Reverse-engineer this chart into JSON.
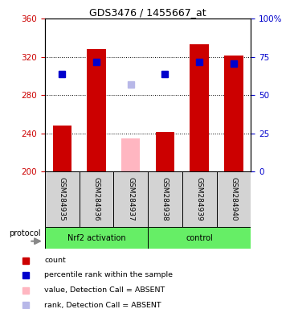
{
  "title": "GDS3476 / 1455667_at",
  "samples": [
    "GSM284935",
    "GSM284936",
    "GSM284937",
    "GSM284938",
    "GSM284939",
    "GSM284940"
  ],
  "bar_values": [
    248,
    328,
    null,
    241,
    333,
    321
  ],
  "bar_color": "#cc0000",
  "absent_bar_values": [
    null,
    null,
    235,
    null,
    null,
    null
  ],
  "absent_bar_color": "#FFB6C1",
  "rank_values": [
    302,
    315,
    null,
    302,
    315,
    313
  ],
  "rank_color": "#0000cc",
  "absent_rank_values": [
    null,
    null,
    291,
    null,
    null,
    null
  ],
  "absent_rank_color": "#b8b8e8",
  "ymin": 200,
  "ymax": 360,
  "yticks_left": [
    200,
    240,
    280,
    320,
    360
  ],
  "yticks_right": [
    0,
    25,
    50,
    75,
    100
  ],
  "ylabel_left_color": "#cc0000",
  "ylabel_right_color": "#0000cc",
  "group_labels": [
    "Nrf2 activation",
    "control"
  ],
  "group_color": "#66ee66",
  "sample_bg": "#d3d3d3",
  "legend_items": [
    {
      "label": "count",
      "color": "#cc0000"
    },
    {
      "label": "percentile rank within the sample",
      "color": "#0000cc"
    },
    {
      "label": "value, Detection Call = ABSENT",
      "color": "#FFB6C1"
    },
    {
      "label": "rank, Detection Call = ABSENT",
      "color": "#b8b8e8"
    }
  ],
  "bar_width": 0.55,
  "rank_marker_size": 6
}
